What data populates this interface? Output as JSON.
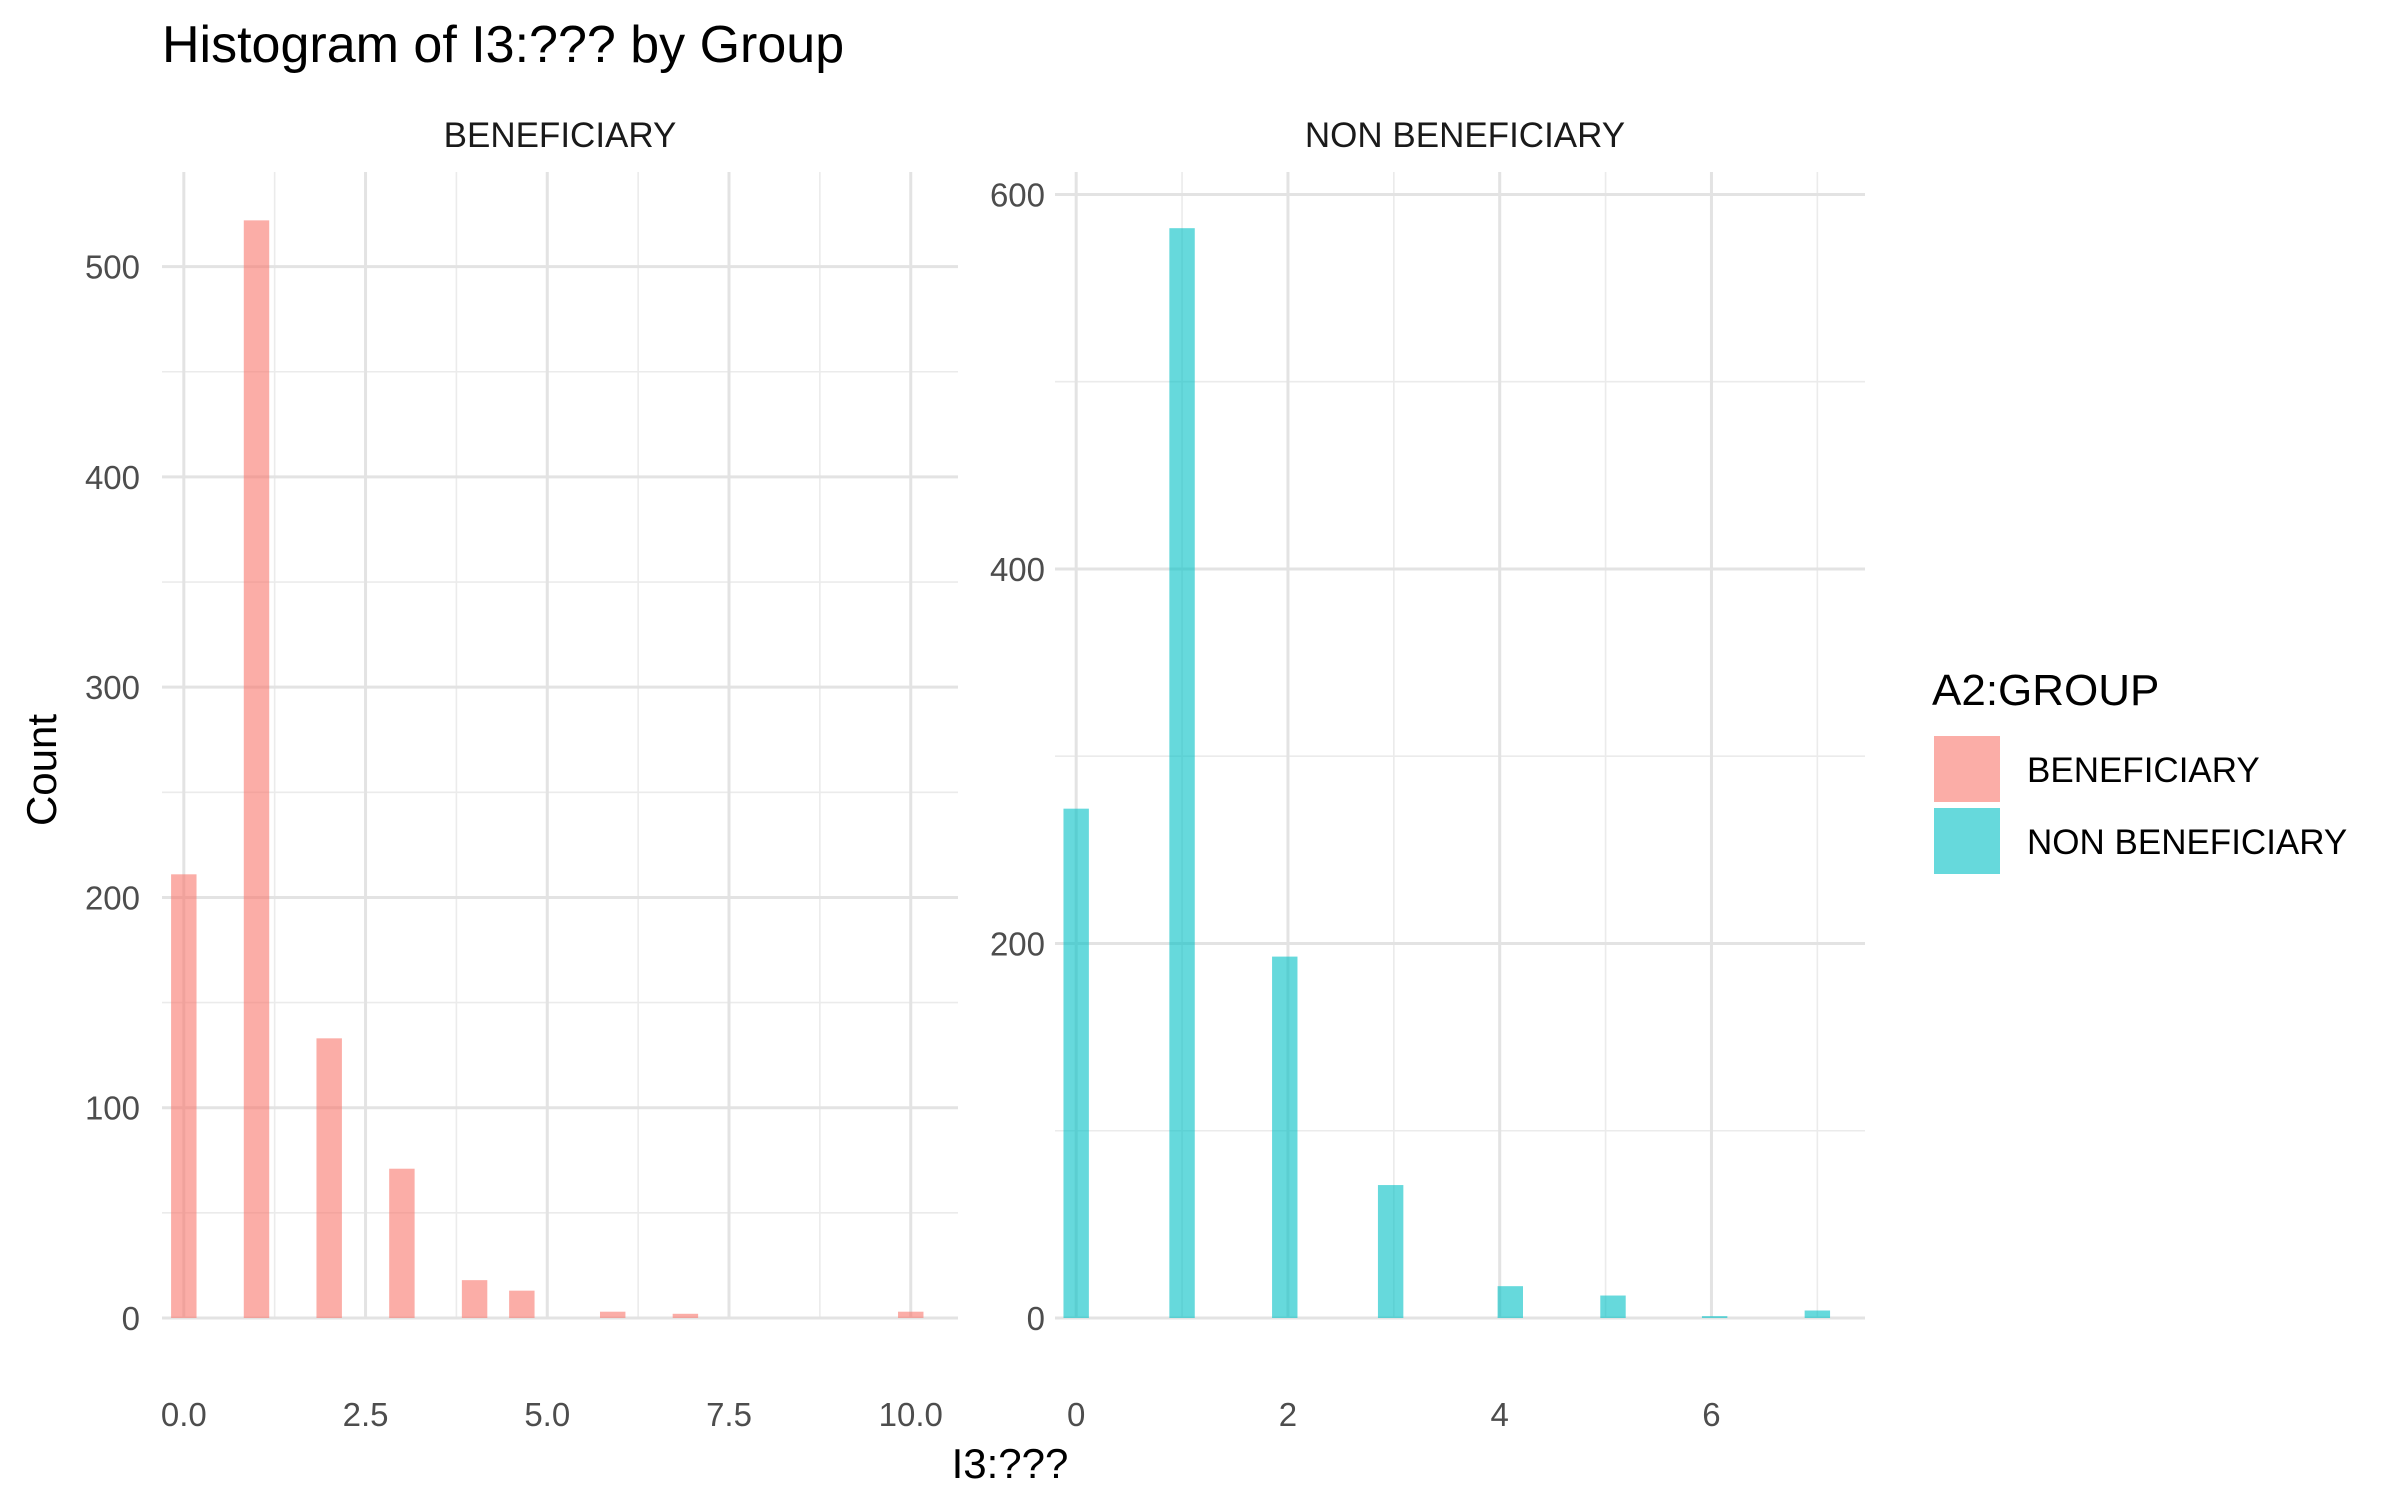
{
  "chart_data": {
    "type": "bar",
    "title": "Histogram of I3:??? by Group",
    "xlabel": "I3:???",
    "ylabel": "Count",
    "grid": true,
    "legend": {
      "title": "A2:GROUP",
      "placement": "right",
      "entries": [
        {
          "label": "BENEFICIARY",
          "color": "#F8766D"
        },
        {
          "label": "NON BENEFICIARY",
          "color": "#00BFC4"
        }
      ]
    },
    "panels": [
      {
        "strip": "BENEFICIARY",
        "color": "#F8766D",
        "xlim": [
          -0.3,
          10.65
        ],
        "ylim": [
          0,
          545
        ],
        "x_ticks": [
          0,
          2.5,
          5,
          7.5,
          10
        ],
        "x_tick_labels": [
          "0.0",
          "2.5",
          "5.0",
          "7.5",
          "10.0"
        ],
        "y_ticks": [
          0,
          100,
          200,
          300,
          400,
          500
        ],
        "y_tick_labels": [
          "0",
          "100",
          "200",
          "300",
          "400",
          "500"
        ],
        "bin_width": 0.35,
        "bars": [
          {
            "x": 0,
            "count": 211
          },
          {
            "x": 1,
            "count": 522
          },
          {
            "x": 2,
            "count": 133
          },
          {
            "x": 3,
            "count": 71
          },
          {
            "x": 4,
            "count": 18
          },
          {
            "x": 4.65,
            "count": 13
          },
          {
            "x": 5.9,
            "count": 3
          },
          {
            "x": 6.9,
            "count": 2
          },
          {
            "x": 10,
            "count": 3
          }
        ]
      },
      {
        "strip": "NON BENEFICIARY",
        "color": "#00BFC4",
        "xlim": [
          -0.2,
          7.45
        ],
        "ylim": [
          0,
          612
        ],
        "x_ticks": [
          0,
          2,
          4,
          6
        ],
        "x_tick_labels": [
          "0",
          "2",
          "4",
          "6"
        ],
        "y_ticks": [
          0,
          200,
          400,
          600
        ],
        "y_tick_labels": [
          "0",
          "200",
          "400",
          "600"
        ],
        "bin_width": 0.24,
        "bars": [
          {
            "x": 0,
            "count": 272
          },
          {
            "x": 1,
            "count": 582
          },
          {
            "x": 1.97,
            "count": 193
          },
          {
            "x": 2.97,
            "count": 71
          },
          {
            "x": 4.1,
            "count": 17
          },
          {
            "x": 5.07,
            "count": 12
          },
          {
            "x": 6.03,
            "count": 1
          },
          {
            "x": 7,
            "count": 4
          }
        ]
      }
    ]
  }
}
